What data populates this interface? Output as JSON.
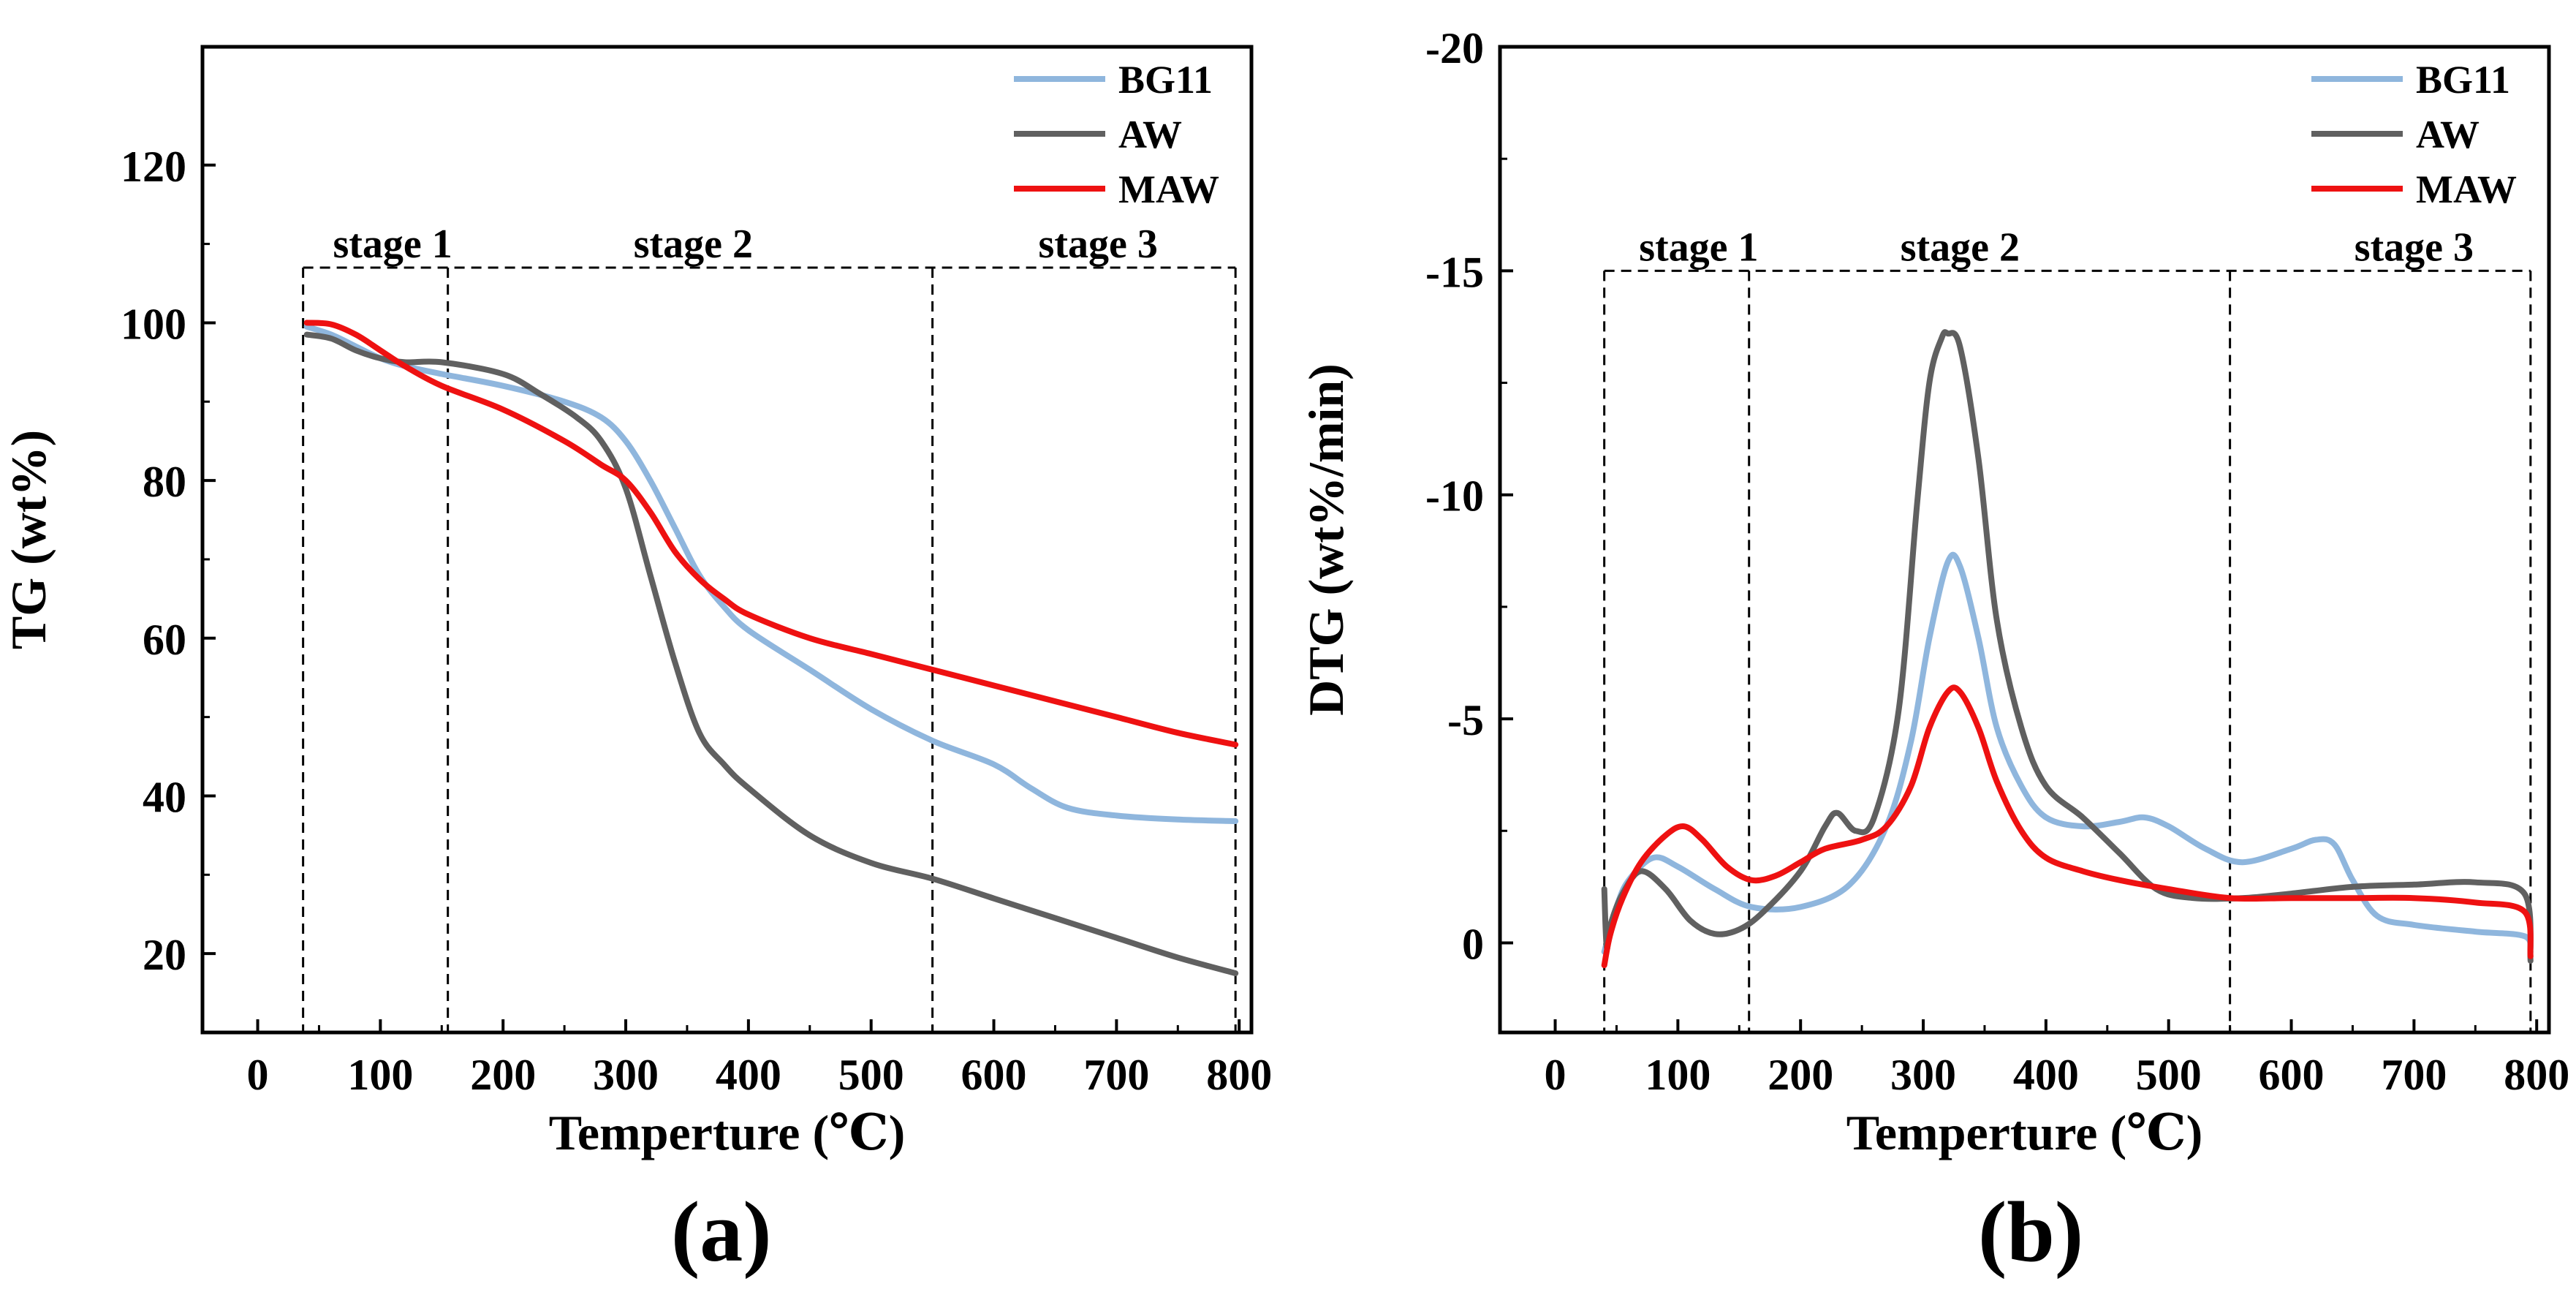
{
  "panel_labels": [
    "(a)",
    "(b)"
  ],
  "chart_data": [
    {
      "type": "line",
      "panel": "(a)",
      "xlabel": "Temperture (℃)",
      "ylabel": "TG (wt%)",
      "xlim": [
        -45,
        810
      ],
      "ylim": [
        10,
        135
      ],
      "xticks": [
        0,
        100,
        200,
        300,
        400,
        500,
        600,
        700,
        800
      ],
      "yticks": [
        20,
        40,
        60,
        80,
        100,
        120
      ],
      "y_reversed": false,
      "legend_position": "top-right",
      "stage_labels": [
        "stage 1",
        "stage 2",
        "stage 3"
      ],
      "stage_boundaries": [
        37,
        155,
        550,
        797
      ],
      "stage_label_x": [
        110,
        355,
        685
      ],
      "stage_top": 107,
      "series": [
        {
          "name": "BG11",
          "color": "#8fb6dd",
          "x": [
            40,
            60,
            80,
            100,
            120,
            150,
            200,
            250,
            280,
            300,
            320,
            340,
            360,
            380,
            400,
            450,
            500,
            550,
            600,
            630,
            660,
            700,
            750,
            797
          ],
          "y": [
            99.5,
            98.5,
            97,
            95.5,
            94.5,
            93.5,
            92,
            90,
            88,
            85,
            80,
            74,
            68,
            64,
            61,
            56,
            51,
            47,
            44,
            41,
            38.5,
            37.5,
            37,
            36.8
          ]
        },
        {
          "name": "AW",
          "color": "#606060",
          "x": [
            40,
            60,
            80,
            100,
            120,
            150,
            200,
            230,
            260,
            280,
            300,
            320,
            340,
            360,
            380,
            400,
            450,
            500,
            550,
            600,
            650,
            700,
            750,
            797
          ],
          "y": [
            98.5,
            98,
            96.5,
            95.5,
            95,
            95,
            93.5,
            91,
            88,
            85,
            79,
            68,
            57,
            48,
            44,
            41,
            35,
            31.5,
            29.5,
            27,
            24.5,
            22,
            19.5,
            17.5
          ]
        },
        {
          "name": "MAW",
          "color": "#ee1111",
          "x": [
            40,
            60,
            80,
            100,
            120,
            150,
            200,
            250,
            280,
            300,
            320,
            340,
            360,
            380,
            400,
            450,
            500,
            550,
            600,
            650,
            700,
            750,
            797
          ],
          "y": [
            100,
            99.8,
            98.5,
            96.5,
            94.5,
            92,
            89,
            85,
            82,
            80,
            76,
            71,
            67.5,
            65,
            63,
            60,
            58,
            56,
            54,
            52,
            50,
            48,
            46.5
          ]
        }
      ]
    },
    {
      "type": "line",
      "panel": "(b)",
      "xlabel": "Temperture (℃)",
      "ylabel": "DTG (wt%/min)",
      "xlim": [
        -45,
        810
      ],
      "ylim": [
        2,
        -20
      ],
      "xticks": [
        0,
        100,
        200,
        300,
        400,
        500,
        600,
        700,
        800
      ],
      "yticks": [
        0,
        -5,
        -10,
        -15,
        -20
      ],
      "y_reversed": true,
      "legend_position": "top-right",
      "stage_labels": [
        "stage 1",
        "stage 2",
        "stage 3"
      ],
      "stage_boundaries": [
        40,
        158,
        550,
        795
      ],
      "stage_label_x": [
        117,
        330,
        700
      ],
      "stage_top": -15,
      "series": [
        {
          "name": "BG11",
          "color": "#8fb6dd",
          "x": [
            40,
            50,
            60,
            80,
            100,
            130,
            160,
            200,
            240,
            270,
            290,
            305,
            320,
            330,
            345,
            360,
            380,
            400,
            430,
            460,
            480,
            500,
            530,
            560,
            600,
            620,
            635,
            650,
            670,
            700,
            750,
            790,
            795
          ],
          "y": [
            0.2,
            -0.8,
            -1.4,
            -1.9,
            -1.7,
            -1.2,
            -0.8,
            -0.8,
            -1.3,
            -2.6,
            -4.5,
            -6.8,
            -8.5,
            -8.4,
            -6.8,
            -4.8,
            -3.5,
            -2.8,
            -2.6,
            -2.7,
            -2.8,
            -2.6,
            -2.1,
            -1.8,
            -2.1,
            -2.3,
            -2.2,
            -1.4,
            -0.6,
            -0.4,
            -0.25,
            -0.15,
            0.2
          ]
        },
        {
          "name": "AW",
          "color": "#606060",
          "x": [
            40,
            42,
            45,
            55,
            70,
            90,
            110,
            130,
            150,
            170,
            200,
            220,
            230,
            245,
            260,
            280,
            295,
            305,
            315,
            320,
            330,
            345,
            360,
            380,
            400,
            430,
            460,
            490,
            520,
            560,
            600,
            650,
            700,
            750,
            790,
            795
          ],
          "y": [
            -1.2,
            0.1,
            -0.4,
            -1.1,
            -1.6,
            -1.2,
            -0.5,
            -0.2,
            -0.3,
            -0.7,
            -1.6,
            -2.6,
            -2.9,
            -2.5,
            -2.8,
            -5.2,
            -9.8,
            -12.5,
            -13.5,
            -13.6,
            -13.3,
            -10.8,
            -7.2,
            -4.8,
            -3.5,
            -2.8,
            -2.0,
            -1.2,
            -1.0,
            -1.0,
            -1.1,
            -1.25,
            -1.3,
            -1.35,
            -1.1,
            0.4
          ]
        },
        {
          "name": "MAW",
          "color": "#ee1111",
          "x": [
            40,
            45,
            55,
            70,
            90,
            105,
            120,
            140,
            160,
            180,
            200,
            220,
            250,
            270,
            290,
            305,
            320,
            330,
            345,
            360,
            380,
            400,
            430,
            460,
            500,
            550,
            600,
            650,
            700,
            750,
            790,
            795
          ],
          "y": [
            0.5,
            -0.2,
            -1.0,
            -1.8,
            -2.4,
            -2.6,
            -2.3,
            -1.7,
            -1.4,
            -1.5,
            -1.8,
            -2.1,
            -2.3,
            -2.6,
            -3.5,
            -4.8,
            -5.6,
            -5.6,
            -4.8,
            -3.6,
            -2.5,
            -1.9,
            -1.6,
            -1.4,
            -1.2,
            -1.0,
            -1.0,
            -1.0,
            -1.0,
            -0.9,
            -0.7,
            0.3
          ]
        }
      ]
    }
  ]
}
